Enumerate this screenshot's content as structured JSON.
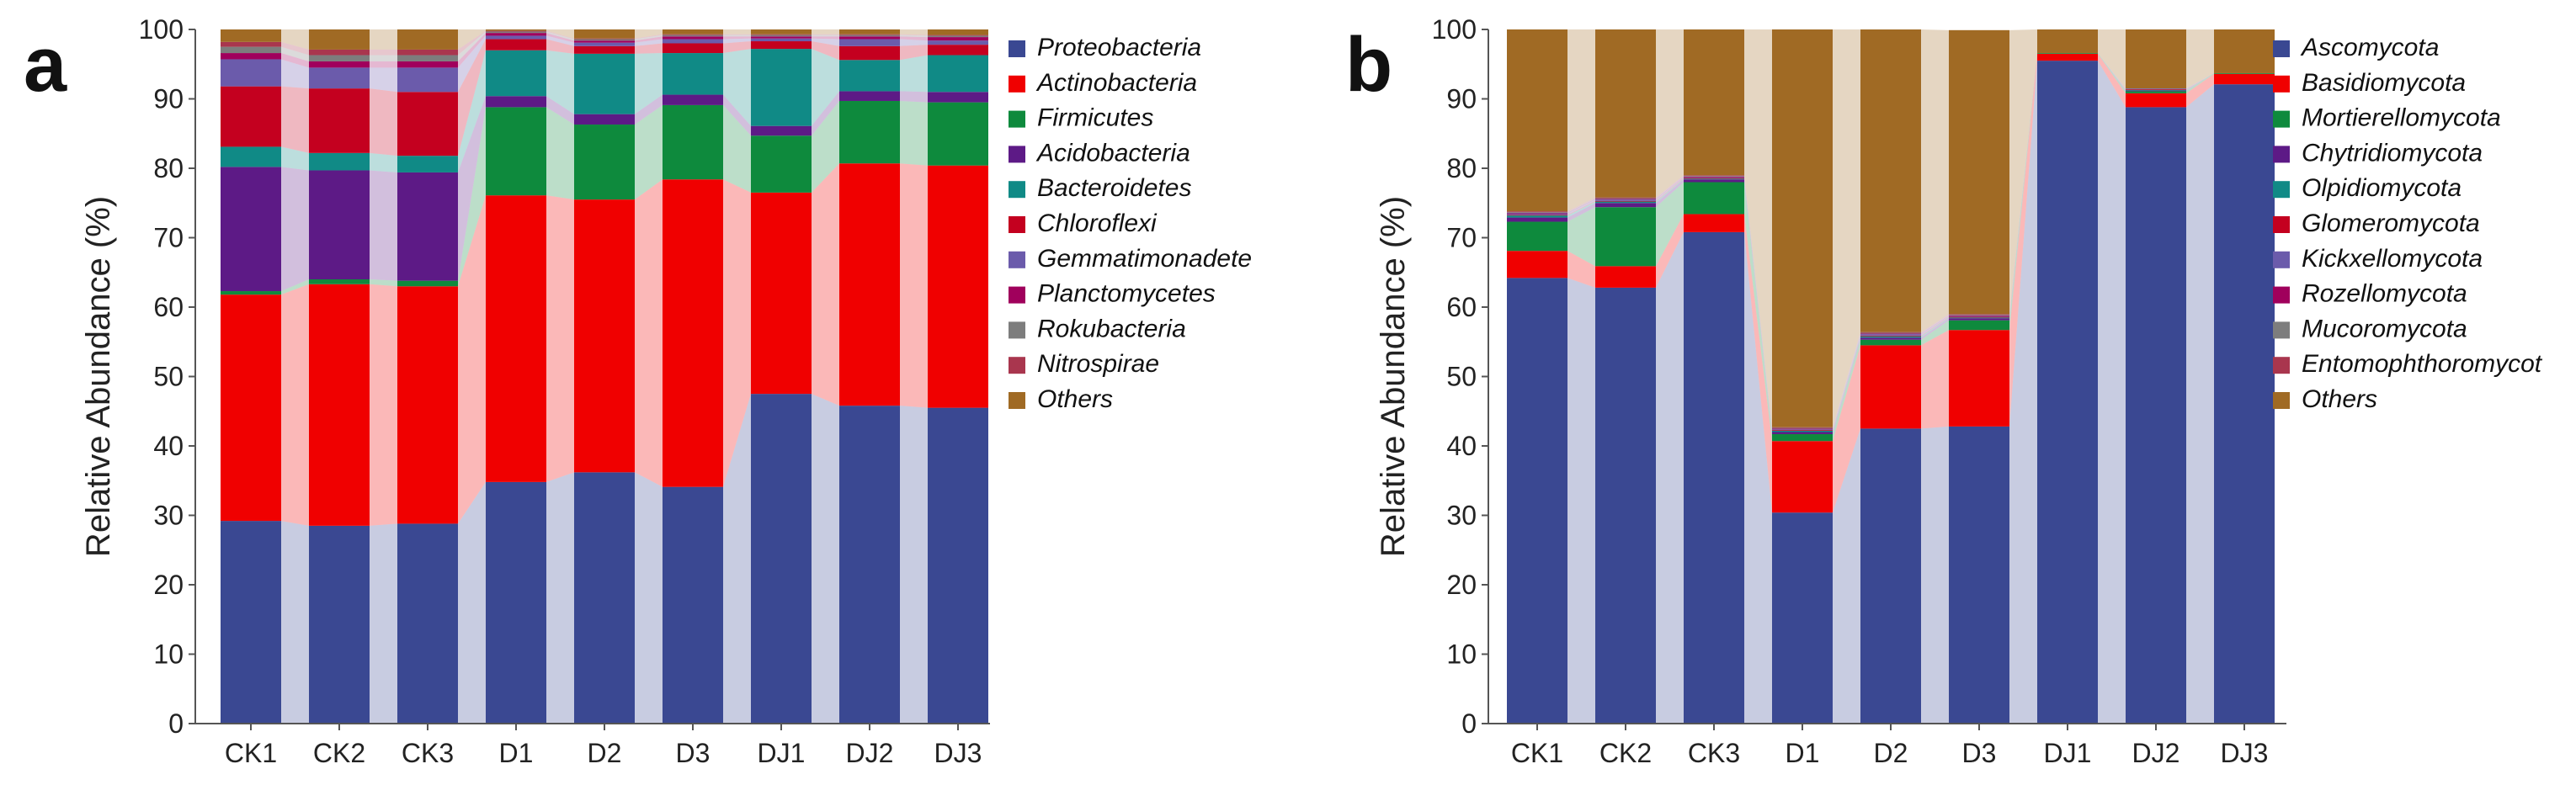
{
  "figure_labels": {
    "a": "a",
    "b": "b"
  },
  "colors": {
    "Proteobacteria": "#3a4892",
    "Actinobacteria": "#f00000",
    "Firmicutes": "#0e8a3d",
    "Acidobacteria": "#5d1a86",
    "Bacteroidetes": "#108a86",
    "Chloroflexi": "#c4001f",
    "Gemmatimonadetes": "#6b5bab",
    "Planctomycetes": "#a0005c",
    "Rokubacteria": "#7d7d7d",
    "Nitrospirae": "#a9364e",
    "Others": "#a06a24",
    "Ascomycota": "#3a4892",
    "Basidiomycota": "#f00000",
    "Mortierellomycota": "#0e8a3d",
    "Chytridiomycota": "#5d1a86",
    "Olpidiomycota": "#108a86",
    "Glomeromycota": "#c4001f",
    "Kickxellomycota": "#6b5bab",
    "Rozellomycota": "#a0005c",
    "Mucoromycota": "#7d7d7d",
    "Entomophthoromycota": "#a9364e"
  },
  "chart_data": [
    {
      "type": "bar",
      "stacked": true,
      "panel": "a",
      "title": "",
      "xlabel": "",
      "ylabel": "Relative Abundance (%)",
      "ylim": [
        0,
        100
      ],
      "yticks": [
        0,
        10,
        20,
        30,
        40,
        50,
        60,
        70,
        80,
        90,
        100
      ],
      "categories": [
        "CK1",
        "CK2",
        "CK3",
        "D1",
        "D2",
        "D3",
        "DJ1",
        "DJ2",
        "DJ3"
      ],
      "legend_labels": [
        "Proteobacteria",
        "Actinobacteria",
        "Firmicutes",
        "Acidobacteria",
        "Bacteroidetes",
        "Chloroflexi",
        "Gemmatimonadete",
        "Planctomycetes",
        "Rokubacteria",
        "Nitrospirae",
        "Others"
      ],
      "series": [
        {
          "name": "Proteobacteria",
          "values": [
            29.2,
            28.5,
            28.8,
            34.8,
            36.2,
            34.1,
            47.5,
            45.8,
            45.5
          ]
        },
        {
          "name": "Actinobacteria",
          "values": [
            32.6,
            34.8,
            34.2,
            41.3,
            39.3,
            44.3,
            29.0,
            34.9,
            34.9
          ]
        },
        {
          "name": "Firmicutes",
          "values": [
            0.5,
            0.7,
            0.8,
            12.7,
            10.8,
            10.7,
            8.2,
            9.0,
            9.1
          ]
        },
        {
          "name": "Acidobacteria",
          "values": [
            17.9,
            15.7,
            15.6,
            1.6,
            1.5,
            1.5,
            1.4,
            1.4,
            1.5
          ]
        },
        {
          "name": "Bacteroidetes",
          "values": [
            2.9,
            2.5,
            2.4,
            6.6,
            8.7,
            6.0,
            11.1,
            4.5,
            5.3
          ]
        },
        {
          "name": "Chloroflexi",
          "values": [
            8.7,
            9.3,
            9.2,
            1.6,
            1.1,
            1.4,
            1.1,
            2.0,
            1.5
          ]
        },
        {
          "name": "Gemmatimonadetes",
          "values": [
            3.9,
            3.0,
            3.5,
            0.5,
            0.5,
            0.6,
            0.4,
            1.0,
            0.6
          ]
        },
        {
          "name": "Planctomycetes",
          "values": [
            0.9,
            0.9,
            0.9,
            0.4,
            0.3,
            0.4,
            0.3,
            0.4,
            0.5
          ]
        },
        {
          "name": "Rokubacteria",
          "values": [
            0.9,
            0.9,
            0.9,
            0.2,
            0.2,
            0.2,
            0.2,
            0.2,
            0.2
          ]
        },
        {
          "name": "Nitrospirae",
          "values": [
            0.7,
            0.8,
            0.8,
            0.1,
            0.1,
            0.1,
            0.1,
            0.1,
            0.1
          ]
        },
        {
          "name": "Others",
          "values": [
            1.8,
            2.9,
            2.9,
            0.2,
            1.3,
            0.7,
            0.7,
            0.7,
            0.8
          ]
        }
      ]
    },
    {
      "type": "bar",
      "stacked": true,
      "panel": "b",
      "title": "",
      "xlabel": "",
      "ylabel": "Relative Abundance (%)",
      "ylim": [
        0,
        100
      ],
      "yticks": [
        0,
        10,
        20,
        30,
        40,
        50,
        60,
        70,
        80,
        90,
        100
      ],
      "categories": [
        "CK1",
        "CK2",
        "CK3",
        "D1",
        "D2",
        "D3",
        "DJ1",
        "DJ2",
        "DJ3"
      ],
      "legend_labels": [
        "Ascomycota",
        "Basidiomycota",
        "Mortierellomycota",
        "Chytridiomycota",
        "Olpidiomycota",
        "Glomeromycota",
        "Kickxellomycota",
        "Rozellomycota",
        "Mucoromycota",
        "Entomophthoromycot",
        "Others"
      ],
      "series": [
        {
          "name": "Ascomycota",
          "values": [
            64.2,
            62.8,
            70.8,
            30.4,
            42.5,
            42.8,
            95.5,
            88.8,
            92.1
          ]
        },
        {
          "name": "Basidiomycota",
          "values": [
            3.9,
            3.1,
            2.6,
            10.3,
            12.0,
            13.9,
            1.0,
            2.0,
            1.5
          ]
        },
        {
          "name": "Mortierellomycota",
          "values": [
            4.2,
            8.5,
            4.6,
            1.0,
            0.8,
            1.4,
            0.1,
            0.3,
            0.1
          ]
        },
        {
          "name": "Chytridiomycota",
          "values": [
            0.6,
            0.6,
            0.4,
            0.3,
            0.3,
            0.3,
            0.0,
            0.1,
            0.0
          ]
        },
        {
          "name": "Olpidiomycota",
          "values": [
            0.3,
            0.2,
            0.1,
            0.2,
            0.2,
            0.1,
            0.0,
            0.1,
            0.0
          ]
        },
        {
          "name": "Glomeromycota",
          "values": [
            0.1,
            0.1,
            0.1,
            0.1,
            0.1,
            0.1,
            0.0,
            0.1,
            0.0
          ]
        },
        {
          "name": "Kickxellomycota",
          "values": [
            0.2,
            0.2,
            0.1,
            0.1,
            0.2,
            0.1,
            0.0,
            0.1,
            0.0
          ]
        },
        {
          "name": "Rozellomycota",
          "values": [
            0.1,
            0.1,
            0.1,
            0.1,
            0.1,
            0.1,
            0.0,
            0.0,
            0.0
          ]
        },
        {
          "name": "Mucoromycota",
          "values": [
            0.1,
            0.1,
            0.1,
            0.1,
            0.1,
            0.1,
            0.0,
            0.0,
            0.0
          ]
        },
        {
          "name": "Entomophthoromycota",
          "values": [
            0.1,
            0.1,
            0.1,
            0.1,
            0.1,
            0.1,
            0.0,
            0.0,
            0.0
          ]
        },
        {
          "name": "Others",
          "values": [
            26.2,
            24.2,
            21.0,
            57.3,
            43.6,
            40.9,
            3.4,
            8.5,
            6.3
          ]
        }
      ]
    }
  ]
}
